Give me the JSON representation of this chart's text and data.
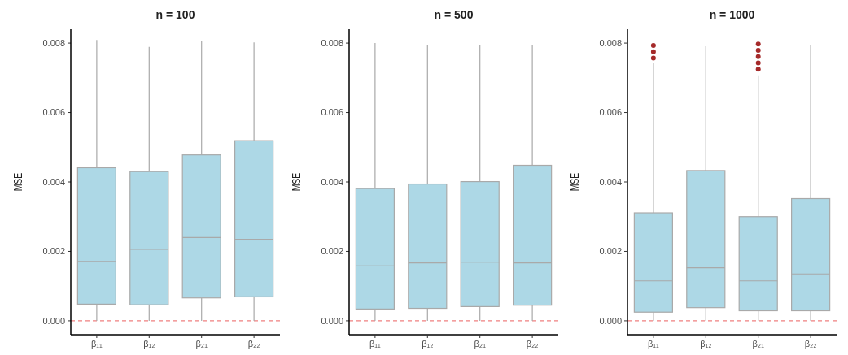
{
  "chart_data": [
    {
      "type": "box",
      "title": "n = 100",
      "ylabel": "MSE",
      "categories": [
        "β₁₁",
        "β₁₂",
        "β₂₁",
        "β₂₂"
      ],
      "ylim": [
        -0.0004,
        0.0084
      ],
      "yticks": [
        {
          "value": 0,
          "label": "0.000"
        },
        {
          "value": 0.002,
          "label": "0.002"
        },
        {
          "value": 0.004,
          "label": "0.004"
        },
        {
          "value": 0.006,
          "label": "0.006"
        },
        {
          "value": 0.008,
          "label": "0.008"
        }
      ],
      "ref_lines": [
        {
          "axis": "y",
          "value": 0,
          "color": "#f08080",
          "line_style": "dashed"
        }
      ],
      "series": [
        {
          "color": "#add8e6",
          "boxes": [
            {
              "low": 0,
              "q1": 0.00048,
              "median": 0.00171,
              "q3": 0.00441,
              "high": 0.00809
            },
            {
              "low": 0,
              "q1": 0.00046,
              "median": 0.00206,
              "q3": 0.0043,
              "high": 0.00789
            },
            {
              "low": 0,
              "q1": 0.00066,
              "median": 0.0024,
              "q3": 0.00478,
              "high": 0.00805
            },
            {
              "low": 0,
              "q1": 0.00069,
              "median": 0.00235,
              "q3": 0.00519,
              "high": 0.00802
            }
          ]
        }
      ]
    },
    {
      "type": "box",
      "title": "n = 500",
      "ylabel": "MSE",
      "categories": [
        "β₁₁",
        "β₁₂",
        "β₂₁",
        "β₂₂"
      ],
      "ylim": [
        -0.0004,
        0.0084
      ],
      "yticks": [
        {
          "value": 0,
          "label": "0.000"
        },
        {
          "value": 0.002,
          "label": "0.002"
        },
        {
          "value": 0.004,
          "label": "0.004"
        },
        {
          "value": 0.006,
          "label": "0.006"
        },
        {
          "value": 0.008,
          "label": "0.008"
        }
      ],
      "ref_lines": [
        {
          "axis": "y",
          "value": 0,
          "color": "#f08080",
          "line_style": "dashed"
        }
      ],
      "series": [
        {
          "color": "#add8e6",
          "boxes": [
            {
              "low": 0,
              "q1": 0.00034,
              "median": 0.00158,
              "q3": 0.00381,
              "high": 0.008
            },
            {
              "low": 0,
              "q1": 0.00036,
              "median": 0.00167,
              "q3": 0.00394,
              "high": 0.00795
            },
            {
              "low": 0,
              "q1": 0.00041,
              "median": 0.00169,
              "q3": 0.00401,
              "high": 0.00795
            },
            {
              "low": 0,
              "q1": 0.00045,
              "median": 0.00167,
              "q3": 0.00448,
              "high": 0.00795
            }
          ]
        }
      ]
    },
    {
      "type": "box",
      "title": "n = 1000",
      "ylabel": "MSE",
      "categories": [
        "β₁₁",
        "β₁₂",
        "β₂₁",
        "β₂₂"
      ],
      "ylim": [
        -0.0004,
        0.0084
      ],
      "yticks": [
        {
          "value": 0,
          "label": "0.000"
        },
        {
          "value": 0.002,
          "label": "0.002"
        },
        {
          "value": 0.004,
          "label": "0.004"
        },
        {
          "value": 0.006,
          "label": "0.006"
        },
        {
          "value": 0.008,
          "label": "0.008"
        }
      ],
      "ref_lines": [
        {
          "axis": "y",
          "value": 0,
          "color": "#f08080",
          "line_style": "dashed"
        }
      ],
      "series": [
        {
          "color": "#add8e6",
          "boxes": [
            {
              "low": 0,
              "q1": 0.00025,
              "median": 0.00115,
              "q3": 0.00311,
              "high": 0.00743,
              "outliers": [
                0.00757,
                0.00775,
                0.00793
              ]
            },
            {
              "low": 0,
              "q1": 0.00038,
              "median": 0.00153,
              "q3": 0.00433,
              "high": 0.00791
            },
            {
              "low": 0,
              "q1": 0.00029,
              "median": 0.00115,
              "q3": 0.003,
              "high": 0.00707,
              "outliers": [
                0.00725,
                0.00743,
                0.00761,
                0.00779,
                0.00797
              ]
            },
            {
              "low": 0,
              "q1": 0.00029,
              "median": 0.00135,
              "q3": 0.00352,
              "high": 0.00795
            }
          ]
        }
      ]
    }
  ]
}
